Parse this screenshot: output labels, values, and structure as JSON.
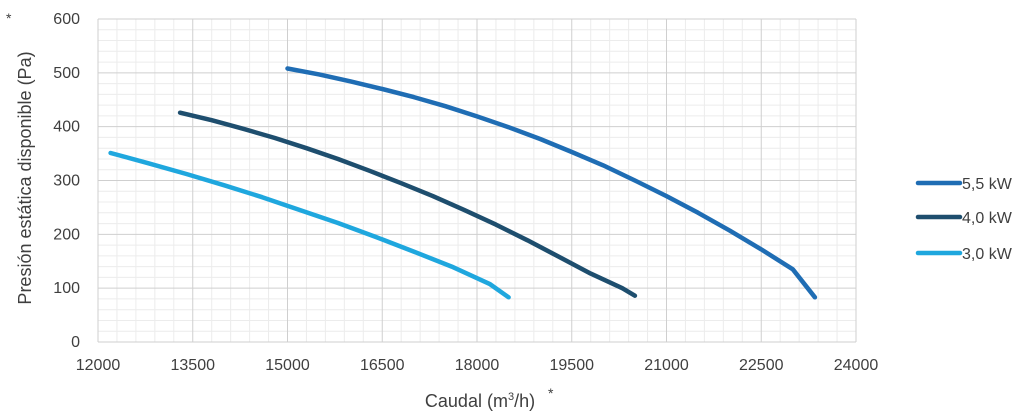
{
  "chart_data": {
    "type": "line",
    "xlabel_main": "Caudal (m",
    "xlabel_sup": "3",
    "xlabel_end": "/h)",
    "xlabel_asterisk": "*",
    "ylabel": "Presión estática disponible (Pa)",
    "ylabel_asterisk": "*",
    "xlim": [
      12000,
      24000
    ],
    "ylim": [
      0,
      600
    ],
    "x_ticks": [
      12000,
      13500,
      15000,
      16500,
      18000,
      19500,
      21000,
      22500,
      24000
    ],
    "x_tick_labels": [
      "12000",
      "13500",
      "15000",
      "16500",
      "18000",
      "19500",
      "21000",
      "22500",
      "24000"
    ],
    "y_ticks": [
      0,
      100,
      200,
      300,
      400,
      500,
      600
    ],
    "y_tick_labels": [
      "0",
      "100",
      "200",
      "300",
      "400",
      "500",
      "600"
    ],
    "grid": true,
    "legend_position": "right",
    "series": [
      {
        "name": "5,5 kW",
        "color": "#1f6db4",
        "x": [
          15000,
          15500,
          16000,
          16500,
          17000,
          17500,
          18000,
          18500,
          19000,
          19500,
          20000,
          20500,
          21000,
          21500,
          22000,
          22500,
          23000,
          23350
        ],
        "y": [
          508,
          497,
          484,
          470,
          455,
          438,
          419,
          399,
          377,
          353,
          328,
          300,
          271,
          240,
          207,
          172,
          135,
          83
        ]
      },
      {
        "name": "4,0 kW",
        "color": "#1e4e6e",
        "x": [
          13300,
          13800,
          14300,
          14800,
          15300,
          15800,
          16300,
          16800,
          17300,
          17800,
          18300,
          18800,
          19300,
          19800,
          20300,
          20500
        ],
        "y": [
          426,
          412,
          396,
          379,
          360,
          340,
          318,
          295,
          271,
          245,
          218,
          189,
          158,
          127,
          100,
          86
        ]
      },
      {
        "name": "3,0 kW",
        "color": "#1fa7de",
        "x": [
          12200,
          12800,
          13400,
          14000,
          14600,
          15200,
          15800,
          16400,
          17000,
          17600,
          18200,
          18500
        ],
        "y": [
          351,
          332,
          312,
          291,
          269,
          245,
          221,
          195,
          168,
          140,
          108,
          83
        ]
      }
    ]
  }
}
